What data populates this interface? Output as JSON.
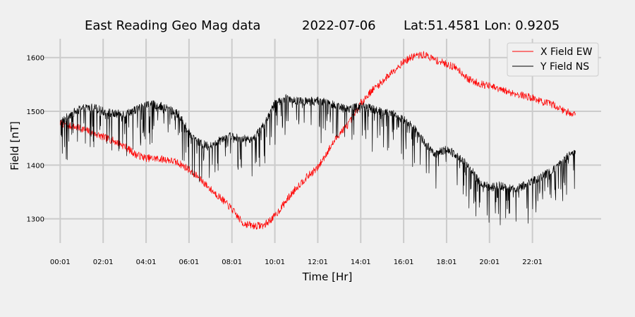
{
  "chart_data": {
    "type": "line",
    "title_parts": [
      "East Reading Geo Mag data",
      "2022-07-06",
      "Lat:51.4581  Lon: 0.9205"
    ],
    "xlabel": "Time  [Hr]",
    "ylabel": "Field  [nT]",
    "x_tick_labels": [
      "00:01",
      "02:01",
      "04:01",
      "06:01",
      "08:01",
      "10:01",
      "12:01",
      "14:01",
      "16:01",
      "18:01",
      "20:01",
      "22:01"
    ],
    "y_ticks": [
      1300,
      1400,
      1500,
      1600
    ],
    "xlim": [
      -0.8,
      25.2
    ],
    "ylim": [
      1255,
      1635
    ],
    "x_unit": "hours after 00:01",
    "grid": true,
    "legend_position": "top-right",
    "series": [
      {
        "name": "X Field EW",
        "color": "#ff0000",
        "anchors": [
          [
            0.0,
            1478
          ],
          [
            0.5,
            1472
          ],
          [
            1.0,
            1468
          ],
          [
            1.5,
            1460
          ],
          [
            2.0,
            1452
          ],
          [
            2.5,
            1445
          ],
          [
            3.0,
            1435
          ],
          [
            3.5,
            1420
          ],
          [
            4.0,
            1413
          ],
          [
            4.5,
            1412
          ],
          [
            5.0,
            1410
          ],
          [
            5.5,
            1404
          ],
          [
            6.0,
            1392
          ],
          [
            6.5,
            1375
          ],
          [
            7.0,
            1355
          ],
          [
            7.5,
            1338
          ],
          [
            8.0,
            1318
          ],
          [
            8.5,
            1292
          ],
          [
            9.0,
            1287
          ],
          [
            9.5,
            1288
          ],
          [
            10.0,
            1305
          ],
          [
            10.5,
            1332
          ],
          [
            11.0,
            1358
          ],
          [
            11.5,
            1378
          ],
          [
            12.0,
            1395
          ],
          [
            12.5,
            1428
          ],
          [
            13.0,
            1458
          ],
          [
            13.5,
            1480
          ],
          [
            14.0,
            1515
          ],
          [
            14.5,
            1538
          ],
          [
            15.0,
            1555
          ],
          [
            15.5,
            1575
          ],
          [
            16.0,
            1592
          ],
          [
            16.5,
            1603
          ],
          [
            17.0,
            1605
          ],
          [
            17.5,
            1595
          ],
          [
            18.0,
            1588
          ],
          [
            18.5,
            1580
          ],
          [
            19.0,
            1560
          ],
          [
            19.5,
            1552
          ],
          [
            20.0,
            1547
          ],
          [
            20.5,
            1540
          ],
          [
            21.0,
            1535
          ],
          [
            21.5,
            1530
          ],
          [
            22.0,
            1525
          ],
          [
            22.5,
            1517
          ],
          [
            23.0,
            1512
          ],
          [
            23.5,
            1500
          ],
          [
            24.0,
            1495
          ]
        ]
      },
      {
        "name": "Y Field NS",
        "color": "#000000",
        "anchors": [
          [
            0.0,
            1478
          ],
          [
            0.5,
            1495
          ],
          [
            1.0,
            1505
          ],
          [
            1.5,
            1508
          ],
          [
            2.0,
            1500
          ],
          [
            2.5,
            1495
          ],
          [
            3.0,
            1495
          ],
          [
            3.5,
            1503
          ],
          [
            4.0,
            1512
          ],
          [
            4.5,
            1512
          ],
          [
            5.0,
            1505
          ],
          [
            5.5,
            1495
          ],
          [
            6.0,
            1460
          ],
          [
            6.5,
            1440
          ],
          [
            7.0,
            1435
          ],
          [
            7.5,
            1450
          ],
          [
            8.0,
            1455
          ],
          [
            8.5,
            1448
          ],
          [
            9.0,
            1450
          ],
          [
            9.5,
            1475
          ],
          [
            10.0,
            1515
          ],
          [
            10.5,
            1525
          ],
          [
            11.0,
            1520
          ],
          [
            11.5,
            1518
          ],
          [
            12.0,
            1520
          ],
          [
            12.5,
            1515
          ],
          [
            13.0,
            1510
          ],
          [
            13.5,
            1505
          ],
          [
            14.0,
            1510
          ],
          [
            14.5,
            1505
          ],
          [
            15.0,
            1500
          ],
          [
            15.5,
            1495
          ],
          [
            16.0,
            1485
          ],
          [
            16.5,
            1470
          ],
          [
            17.0,
            1440
          ],
          [
            17.5,
            1420
          ],
          [
            18.0,
            1430
          ],
          [
            18.5,
            1418
          ],
          [
            19.0,
            1400
          ],
          [
            19.5,
            1370
          ],
          [
            20.0,
            1358
          ],
          [
            20.5,
            1362
          ],
          [
            21.0,
            1355
          ],
          [
            21.5,
            1360
          ],
          [
            22.0,
            1370
          ],
          [
            22.5,
            1380
          ],
          [
            23.0,
            1392
          ],
          [
            23.5,
            1410
          ],
          [
            24.0,
            1428
          ]
        ]
      }
    ]
  }
}
